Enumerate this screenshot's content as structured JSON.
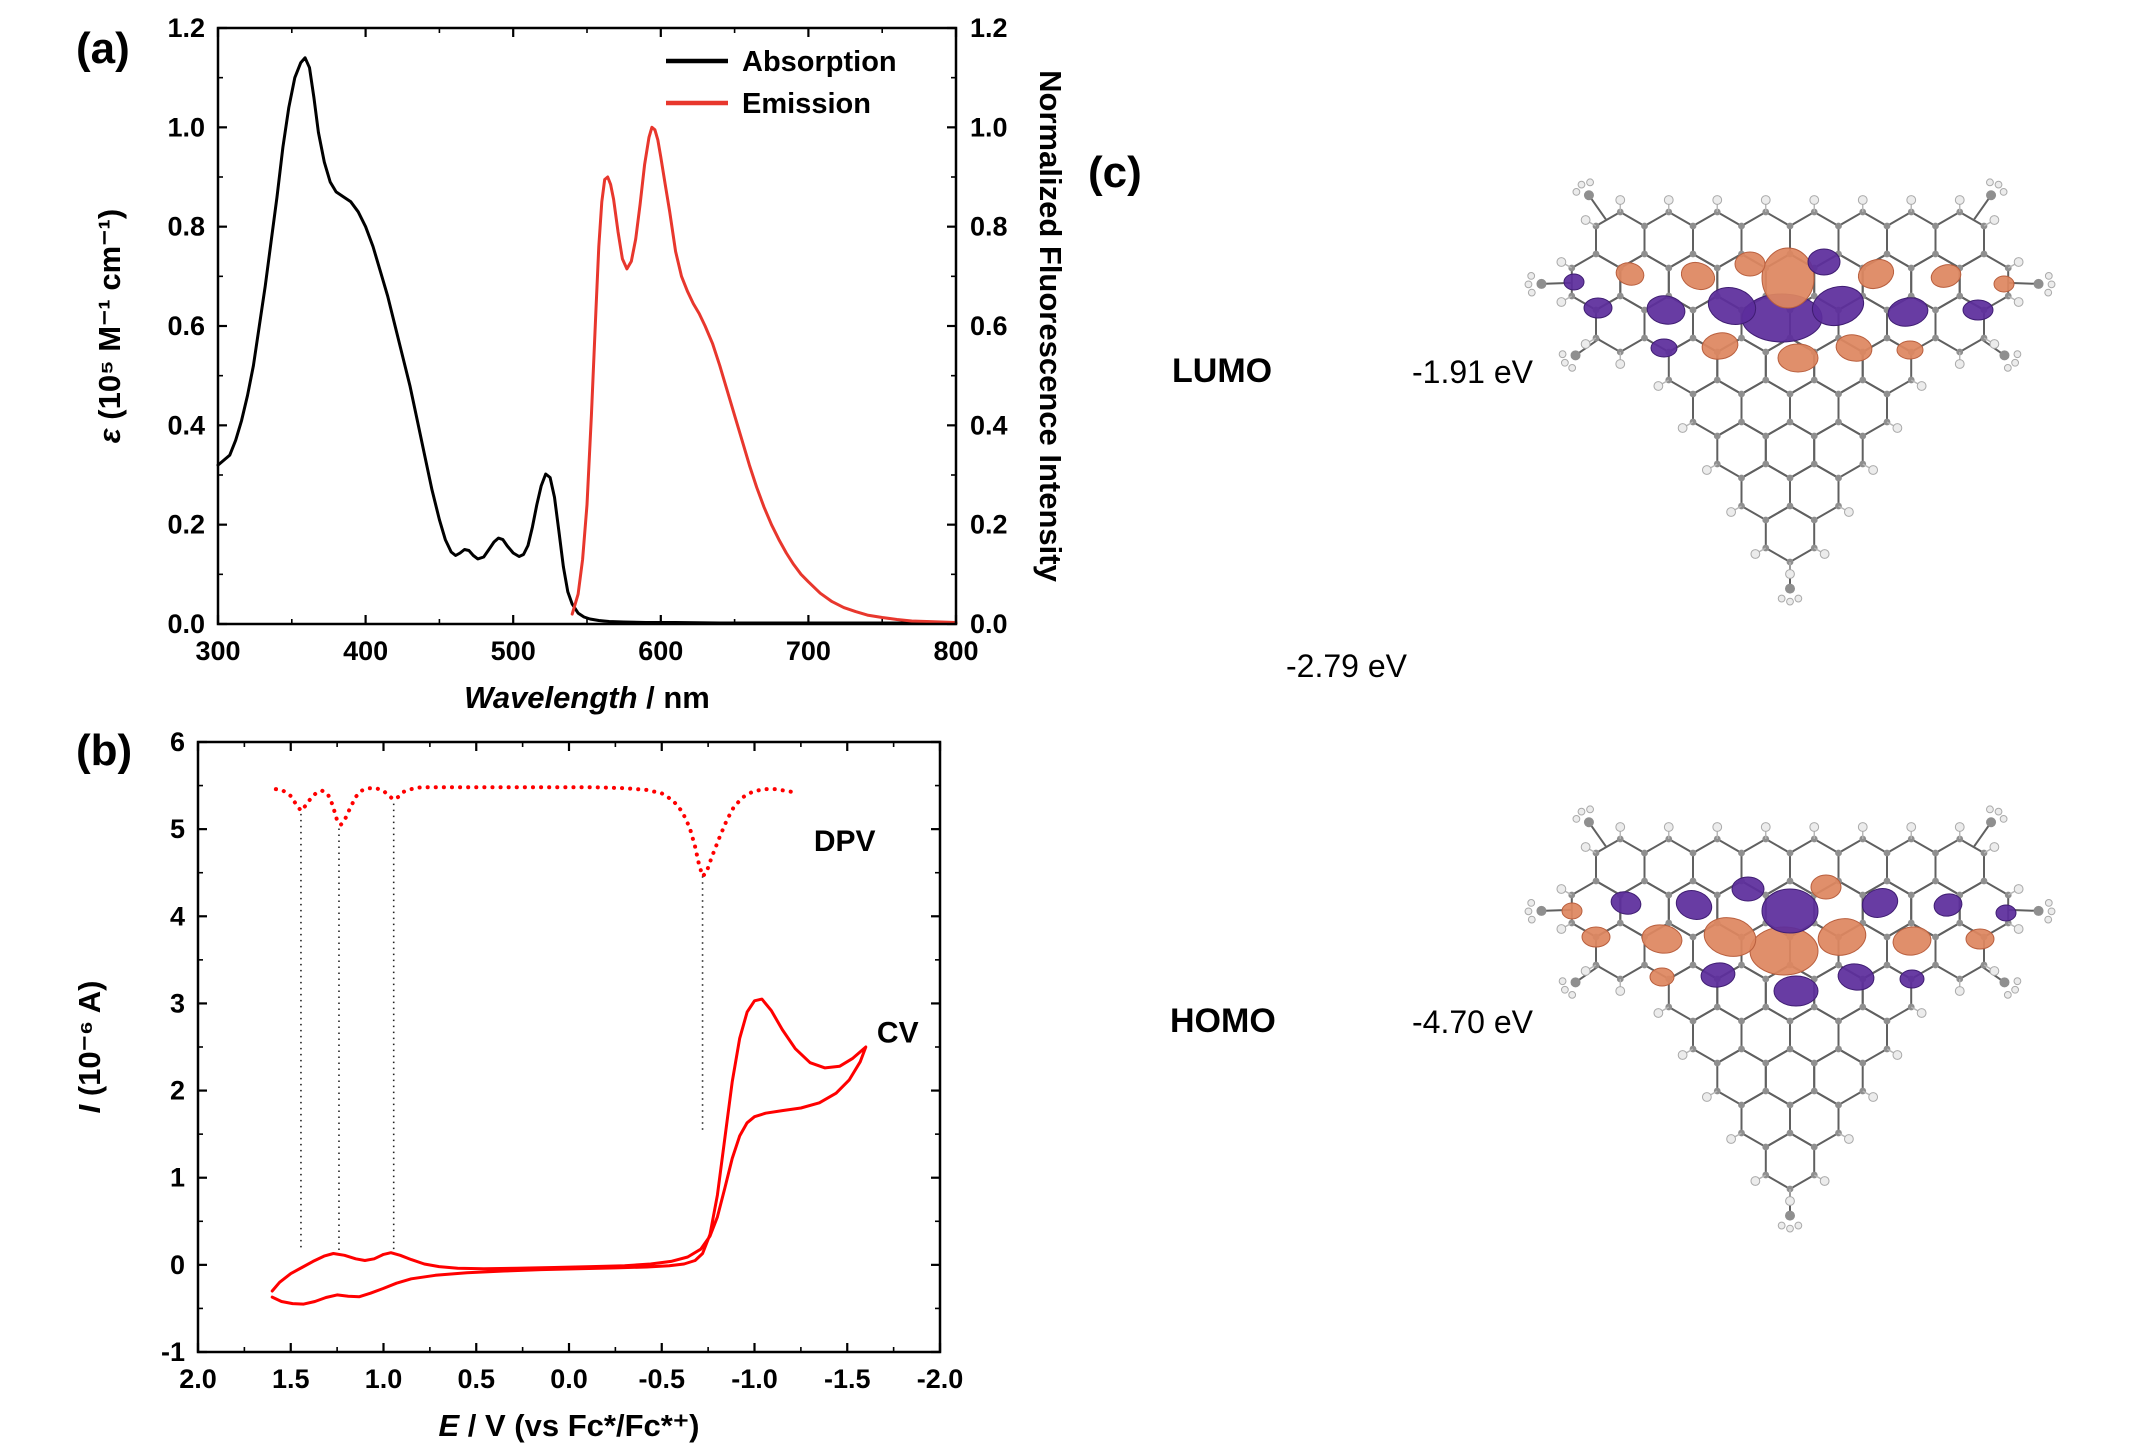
{
  "panels": {
    "a": {
      "label": "(a)"
    },
    "b": {
      "label": "(b)"
    },
    "c": {
      "label": "(c)",
      "lumo_label": "LUMO",
      "lumo_energy": "-1.91 eV",
      "gap_energy": "-2.79 eV",
      "homo_label": "HOMO",
      "homo_energy": "-4.70 eV",
      "orbital_colors": {
        "positive": "#DE8660",
        "negative": "#5C2D9C"
      },
      "atom_colors": {
        "carbon": "#8f8f8f",
        "hydrogen": "#ececec",
        "bond": "#606060"
      }
    }
  },
  "chart_data": [
    {
      "id": "absorption_emission",
      "type": "line",
      "title": "",
      "xlabel_parts": [
        {
          "t": "Wavelength",
          "i": true
        },
        {
          "t": " / nm",
          "i": false
        }
      ],
      "ylabel_parts": [
        {
          "t": "ε",
          "i": true
        },
        {
          "t": " (10⁵ M⁻¹ cm⁻¹)",
          "i": false
        }
      ],
      "ylabel_right_parts": [
        {
          "t": "Normalized Fluorescence Intensity",
          "i": false
        }
      ],
      "xlim": [
        300,
        800
      ],
      "ylim": [
        0,
        1.2
      ],
      "xticks": [
        300,
        400,
        500,
        600,
        700,
        800
      ],
      "xtick_labels": [
        "300",
        "400",
        "500",
        "600",
        "700",
        "800"
      ],
      "yticks": [
        0,
        0.2,
        0.4,
        0.6,
        0.8,
        1.0,
        1.2
      ],
      "ytick_labels": [
        "0.0",
        "0.2",
        "0.4",
        "0.6",
        "0.8",
        "1.0",
        "1.2"
      ],
      "grid": false,
      "legend_position": "top-right",
      "legend": [
        {
          "label": "Absorption",
          "color": "#000000"
        },
        {
          "label": "Emission",
          "color": "#e8372d"
        }
      ],
      "series": [
        {
          "name": "Absorption",
          "color": "#000000",
          "width": 3,
          "x": [
            300,
            304,
            308,
            312,
            316,
            320,
            324,
            328,
            332,
            336,
            340,
            344,
            348,
            352,
            356,
            359,
            362,
            365,
            368,
            372,
            376,
            380,
            385,
            390,
            395,
            400,
            405,
            410,
            415,
            420,
            425,
            430,
            435,
            440,
            445,
            450,
            454,
            458,
            461,
            464,
            467,
            470,
            473,
            476,
            480,
            484,
            487,
            490,
            493,
            496,
            500,
            504,
            507,
            510,
            513,
            516,
            519,
            522,
            525,
            528,
            531,
            534,
            537,
            540,
            544,
            548,
            552,
            558,
            565,
            575,
            590,
            610,
            640,
            680,
            720,
            760,
            800
          ],
          "y": [
            0.32,
            0.33,
            0.34,
            0.37,
            0.41,
            0.46,
            0.52,
            0.6,
            0.68,
            0.77,
            0.86,
            0.96,
            1.04,
            1.1,
            1.13,
            1.14,
            1.12,
            1.06,
            0.99,
            0.93,
            0.89,
            0.87,
            0.86,
            0.85,
            0.83,
            0.8,
            0.76,
            0.71,
            0.66,
            0.6,
            0.54,
            0.48,
            0.41,
            0.34,
            0.27,
            0.21,
            0.17,
            0.145,
            0.138,
            0.143,
            0.15,
            0.148,
            0.138,
            0.131,
            0.135,
            0.152,
            0.165,
            0.173,
            0.17,
            0.157,
            0.143,
            0.136,
            0.14,
            0.158,
            0.195,
            0.24,
            0.278,
            0.302,
            0.295,
            0.255,
            0.185,
            0.115,
            0.065,
            0.04,
            0.022,
            0.014,
            0.01,
            0.007,
            0.005,
            0.004,
            0.003,
            0.003,
            0.002,
            0.002,
            0.002,
            0.002,
            0.002
          ]
        },
        {
          "name": "Emission",
          "color": "#e8372d",
          "width": 3,
          "x": [
            540,
            544,
            547,
            550,
            553,
            556,
            558,
            560,
            562,
            564,
            566,
            568,
            571,
            574,
            577,
            580,
            583,
            586,
            589,
            592,
            594,
            596,
            598,
            600,
            603,
            606,
            610,
            614,
            618,
            622,
            626,
            630,
            635,
            640,
            645,
            650,
            655,
            660,
            665,
            670,
            675,
            680,
            685,
            690,
            695,
            700,
            708,
            716,
            724,
            732,
            740,
            750,
            760,
            770,
            780,
            790,
            800
          ],
          "y": [
            0.02,
            0.06,
            0.13,
            0.24,
            0.42,
            0.63,
            0.76,
            0.85,
            0.895,
            0.9,
            0.885,
            0.855,
            0.79,
            0.735,
            0.715,
            0.73,
            0.775,
            0.845,
            0.925,
            0.98,
            1.0,
            0.995,
            0.975,
            0.94,
            0.885,
            0.83,
            0.75,
            0.7,
            0.67,
            0.645,
            0.625,
            0.6,
            0.565,
            0.52,
            0.47,
            0.42,
            0.37,
            0.32,
            0.275,
            0.235,
            0.2,
            0.17,
            0.143,
            0.12,
            0.1,
            0.085,
            0.062,
            0.045,
            0.033,
            0.025,
            0.018,
            0.013,
            0.009,
            0.006,
            0.005,
            0.004,
            0.003
          ]
        }
      ]
    },
    {
      "id": "cv_dpv",
      "type": "line",
      "title": "",
      "xlabel_parts": [
        {
          "t": "E",
          "i": true
        },
        {
          "t": " / V (vs Fc*/Fc*⁺)",
          "i": false
        }
      ],
      "ylabel_parts": [
        {
          "t": "I",
          "i": true
        },
        {
          "t": " (10⁻⁶ A)",
          "i": false
        }
      ],
      "xlim": [
        2.0,
        -2.0
      ],
      "ylim": [
        -1,
        6
      ],
      "xticks": [
        2.0,
        1.5,
        1.0,
        0.5,
        0.0,
        -0.5,
        -1.0,
        -1.5,
        -2.0
      ],
      "xtick_labels": [
        "2.0",
        "1.5",
        "1.0",
        "0.5",
        "0.0",
        "-0.5",
        "-1.0",
        "-1.5",
        "-2.0"
      ],
      "yticks": [
        -1,
        0,
        1,
        2,
        3,
        4,
        5,
        6
      ],
      "ytick_labels": [
        "-1",
        "0",
        "1",
        "2",
        "3",
        "4",
        "5",
        "6"
      ],
      "grid": false,
      "annotations": [
        {
          "text": "DPV",
          "x": -1.32,
          "y": 4.75,
          "color": "#ff0000"
        },
        {
          "text": "CV",
          "x": -1.66,
          "y": 2.55,
          "color": "#ff0000"
        }
      ],
      "guide_lines": [
        {
          "x": 1.445,
          "y1": 0.2,
          "y2": 5.21
        },
        {
          "x": 1.24,
          "y1": 0.17,
          "y2": 5.05
        },
        {
          "x": 0.945,
          "y1": 0.18,
          "y2": 5.33
        },
        {
          "x": -0.72,
          "y1": 1.55,
          "y2": 4.47
        }
      ],
      "series": [
        {
          "name": "CV",
          "color": "#ff0000",
          "width": 3,
          "x": [
            1.6,
            1.55,
            1.49,
            1.43,
            1.37,
            1.31,
            1.25,
            1.19,
            1.13,
            1.07,
            1.0,
            0.93,
            0.85,
            0.72,
            0.55,
            0.35,
            0.15,
            -0.05,
            -0.25,
            -0.42,
            -0.54,
            -0.62,
            -0.68,
            -0.72,
            -0.76,
            -0.8,
            -0.84,
            -0.88,
            -0.92,
            -0.96,
            -1.0,
            -1.04,
            -1.09,
            -1.15,
            -1.22,
            -1.3,
            -1.38,
            -1.46,
            -1.53,
            -1.6,
            -1.57,
            -1.51,
            -1.44,
            -1.35,
            -1.25,
            -1.15,
            -1.06,
            -1.0,
            -0.96,
            -0.92,
            -0.88,
            -0.84,
            -0.8,
            -0.76,
            -0.71,
            -0.64,
            -0.55,
            -0.44,
            -0.3,
            -0.12,
            0.08,
            0.28,
            0.46,
            0.6,
            0.7,
            0.78,
            0.85,
            0.91,
            0.96,
            1.0,
            1.05,
            1.1,
            1.15,
            1.21,
            1.27,
            1.32,
            1.38,
            1.44,
            1.5,
            1.56,
            1.6
          ],
          "y": [
            -0.37,
            -0.42,
            -0.445,
            -0.45,
            -0.42,
            -0.375,
            -0.345,
            -0.36,
            -0.365,
            -0.325,
            -0.27,
            -0.21,
            -0.16,
            -0.12,
            -0.09,
            -0.07,
            -0.055,
            -0.045,
            -0.035,
            -0.025,
            -0.01,
            0.01,
            0.05,
            0.13,
            0.35,
            0.8,
            1.45,
            2.1,
            2.6,
            2.9,
            3.03,
            3.05,
            2.92,
            2.7,
            2.48,
            2.32,
            2.26,
            2.28,
            2.37,
            2.5,
            2.33,
            2.12,
            1.97,
            1.86,
            1.8,
            1.77,
            1.74,
            1.7,
            1.63,
            1.48,
            1.22,
            0.88,
            0.55,
            0.33,
            0.18,
            0.09,
            0.04,
            0.01,
            -0.01,
            -0.02,
            -0.03,
            -0.04,
            -0.045,
            -0.04,
            -0.02,
            0.01,
            0.06,
            0.11,
            0.14,
            0.12,
            0.07,
            0.05,
            0.07,
            0.11,
            0.13,
            0.1,
            0.04,
            -0.03,
            -0.1,
            -0.2,
            -0.3
          ]
        },
        {
          "name": "DPV",
          "color": "#ff0000",
          "width": 3,
          "dotted": true,
          "x": [
            1.58,
            1.54,
            1.5,
            1.47,
            1.445,
            1.42,
            1.39,
            1.36,
            1.33,
            1.3,
            1.275,
            1.25,
            1.23,
            1.21,
            1.18,
            1.15,
            1.12,
            1.08,
            1.04,
            1.0,
            0.97,
            0.945,
            0.92,
            0.89,
            0.85,
            0.8,
            0.7,
            0.6,
            0.45,
            0.3,
            0.15,
            0.0,
            -0.15,
            -0.3,
            -0.42,
            -0.5,
            -0.56,
            -0.61,
            -0.65,
            -0.68,
            -0.7,
            -0.72,
            -0.74,
            -0.77,
            -0.81,
            -0.85,
            -0.89,
            -0.94,
            -0.99,
            -1.05,
            -1.11,
            -1.17,
            -1.22
          ],
          "y": [
            5.46,
            5.44,
            5.38,
            5.28,
            5.21,
            5.27,
            5.36,
            5.42,
            5.44,
            5.4,
            5.28,
            5.1,
            5.05,
            5.1,
            5.24,
            5.37,
            5.44,
            5.47,
            5.47,
            5.44,
            5.38,
            5.34,
            5.37,
            5.43,
            5.46,
            5.48,
            5.48,
            5.48,
            5.48,
            5.48,
            5.48,
            5.48,
            5.48,
            5.47,
            5.45,
            5.41,
            5.33,
            5.2,
            5.02,
            4.8,
            4.6,
            4.46,
            4.5,
            4.68,
            4.9,
            5.1,
            5.26,
            5.37,
            5.43,
            5.46,
            5.46,
            5.44,
            5.42
          ]
        }
      ]
    }
  ]
}
